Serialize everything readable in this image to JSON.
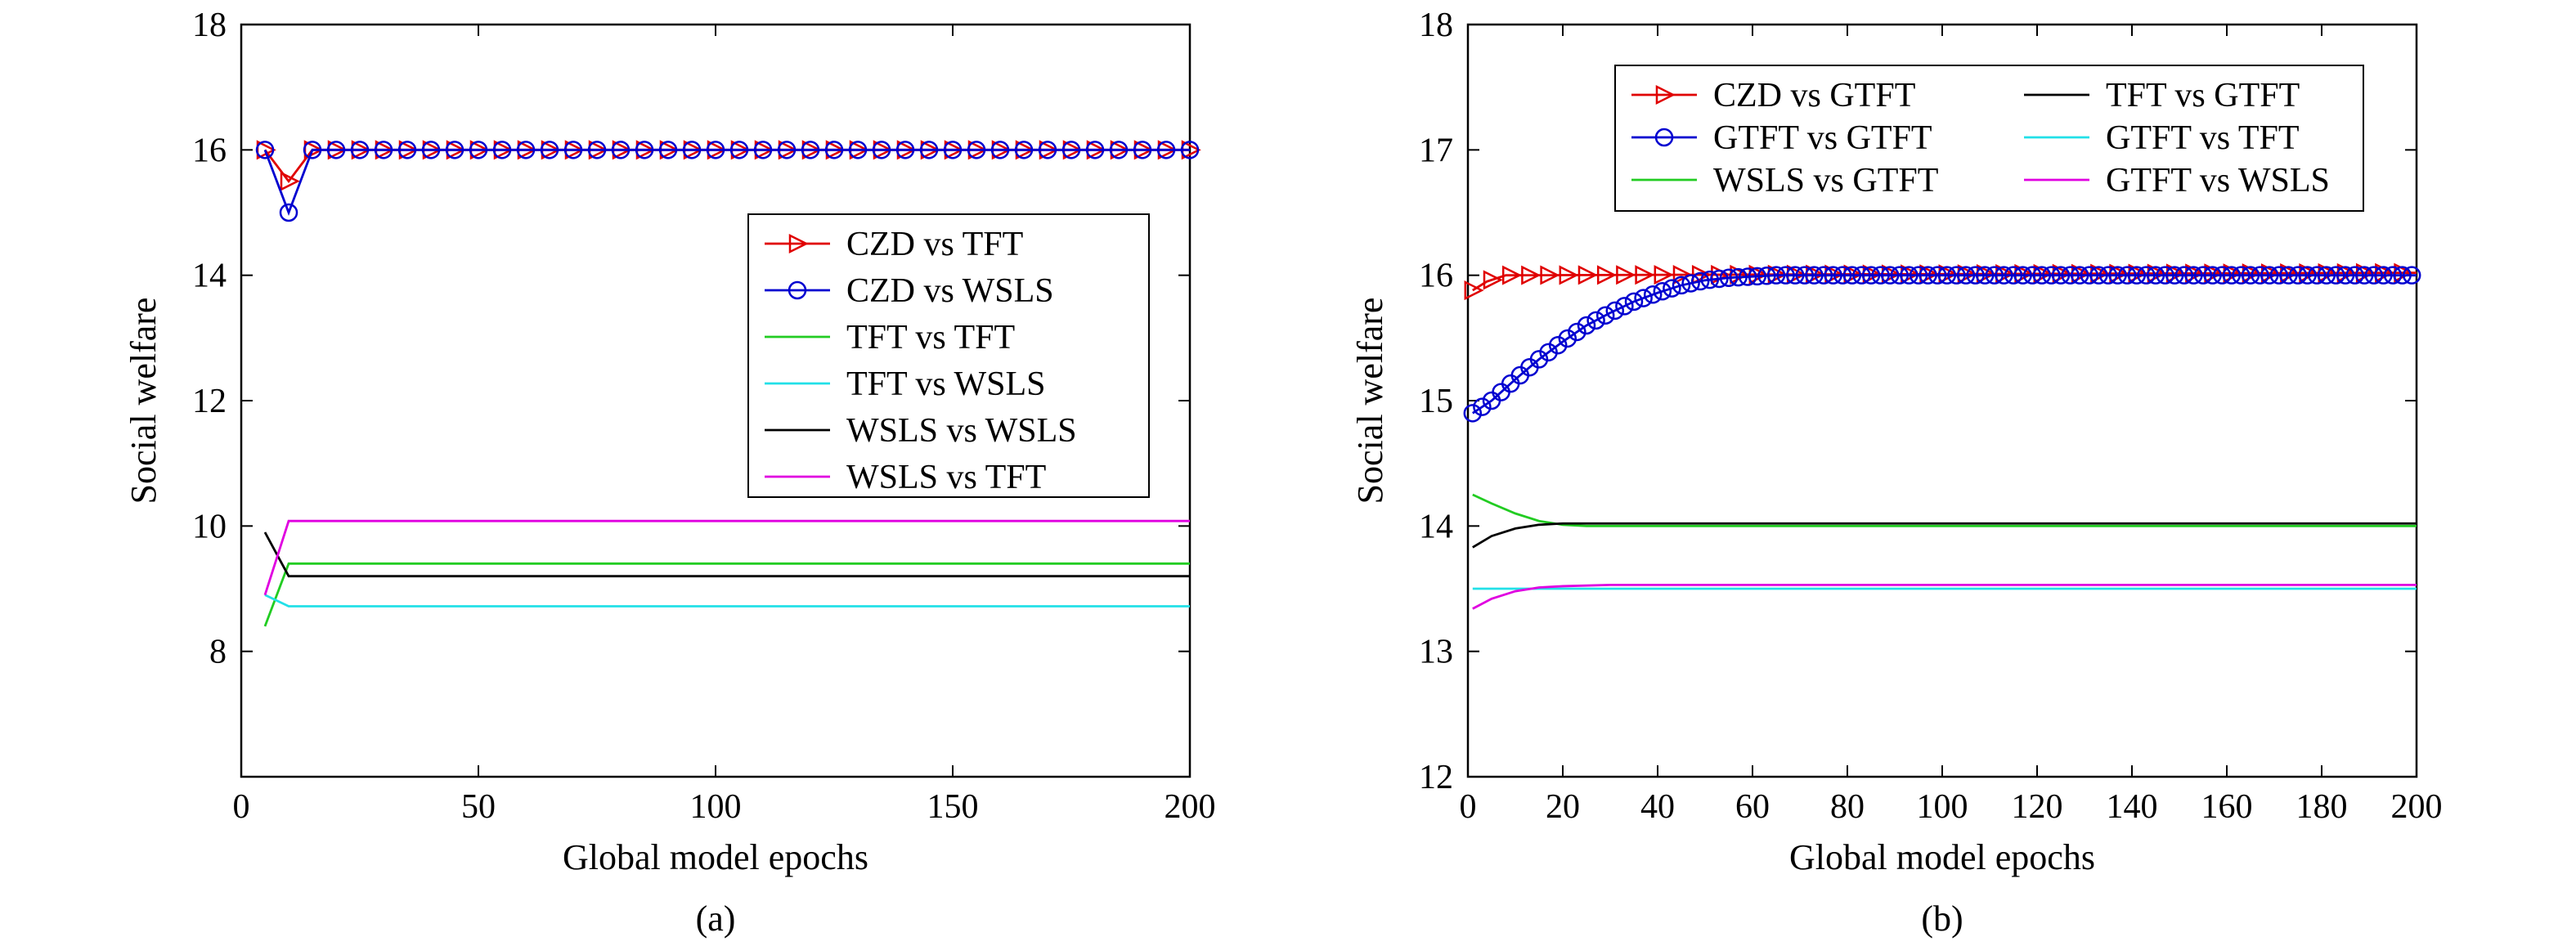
{
  "chart_data": [
    {
      "type": "line",
      "panel_label": "(a)",
      "xlabel": "Global model epochs",
      "ylabel": "Social welfare",
      "xlim": [
        0,
        200
      ],
      "ylim": [
        6,
        18
      ],
      "xticks": [
        0,
        50,
        100,
        150,
        200
      ],
      "yticks": [
        8,
        10,
        12,
        14,
        16,
        18
      ],
      "legend_position": "center-right",
      "grid": false,
      "series": [
        {
          "name": "CZD vs TFT",
          "color": "#e00000",
          "marker": "triangle-right",
          "points": [
            [
              5,
              16
            ],
            [
              10,
              15.5
            ],
            [
              15,
              16
            ],
            [
              20,
              16
            ],
            [
              200,
              16
            ]
          ],
          "marker_start": 5,
          "marker_step": 5
        },
        {
          "name": "CZD vs WSLS",
          "color": "#0000d0",
          "marker": "circle",
          "points": [
            [
              5,
              16
            ],
            [
              10,
              15
            ],
            [
              15,
              16
            ],
            [
              20,
              16
            ],
            [
              200,
              16
            ]
          ],
          "marker_start": 5,
          "marker_step": 5
        },
        {
          "name": "TFT vs TFT",
          "color": "#22cc22",
          "marker": "none",
          "points": [
            [
              5,
              8.4
            ],
            [
              10,
              9.4
            ],
            [
              200,
              9.4
            ]
          ]
        },
        {
          "name": "TFT vs WSLS",
          "color": "#22e0e8",
          "marker": "none",
          "points": [
            [
              5,
              8.9
            ],
            [
              10,
              8.72
            ],
            [
              200,
              8.72
            ]
          ]
        },
        {
          "name": "WSLS vs WSLS",
          "color": "#000000",
          "marker": "none",
          "points": [
            [
              5,
              9.9
            ],
            [
              10,
              9.2
            ],
            [
              200,
              9.2
            ]
          ]
        },
        {
          "name": "WSLS vs TFT",
          "color": "#e000e0",
          "marker": "none",
          "points": [
            [
              5,
              8.9
            ],
            [
              10,
              10.08
            ],
            [
              200,
              10.08
            ]
          ]
        }
      ]
    },
    {
      "type": "line",
      "panel_label": "(b)",
      "xlabel": "Global model epochs",
      "ylabel": "Social welfare",
      "xlim": [
        0,
        200
      ],
      "ylim": [
        12,
        18
      ],
      "xticks": [
        0,
        20,
        40,
        60,
        80,
        100,
        120,
        140,
        160,
        180,
        200
      ],
      "yticks": [
        12,
        13,
        14,
        15,
        16,
        17,
        18
      ],
      "legend_position": "top",
      "grid": false,
      "series": [
        {
          "name": "CZD vs GTFT",
          "color": "#e00000",
          "marker": "triangle-right",
          "points": [
            [
              1,
              15.88
            ],
            [
              4,
              15.95
            ],
            [
              8,
              16
            ],
            [
              200,
              16.02
            ]
          ],
          "marker_start": 1,
          "marker_step": 4
        },
        {
          "name": "GTFT vs GTFT",
          "color": "#0000d0",
          "marker": "circle",
          "points": [
            [
              1,
              14.9
            ],
            [
              5,
              15.0
            ],
            [
              10,
              15.17
            ],
            [
              15,
              15.33
            ],
            [
              20,
              15.47
            ],
            [
              25,
              15.6
            ],
            [
              30,
              15.7
            ],
            [
              35,
              15.79
            ],
            [
              40,
              15.86
            ],
            [
              45,
              15.92
            ],
            [
              50,
              15.96
            ],
            [
              55,
              15.98
            ],
            [
              60,
              15.99
            ],
            [
              65,
              16.0
            ],
            [
              200,
              16.0
            ]
          ],
          "marker_start": 1,
          "marker_step": 2
        },
        {
          "name": "WSLS vs GTFT",
          "color": "#22cc22",
          "marker": "none",
          "points": [
            [
              1,
              14.25
            ],
            [
              5,
              14.18
            ],
            [
              10,
              14.1
            ],
            [
              15,
              14.04
            ],
            [
              20,
              14.01
            ],
            [
              25,
              14.0
            ],
            [
              200,
              14.0
            ]
          ]
        },
        {
          "name": "TFT vs GTFT",
          "color": "#000000",
          "marker": "none",
          "points": [
            [
              1,
              13.83
            ],
            [
              5,
              13.92
            ],
            [
              10,
              13.98
            ],
            [
              15,
              14.01
            ],
            [
              20,
              14.02
            ],
            [
              200,
              14.02
            ]
          ]
        },
        {
          "name": "GTFT vs TFT",
          "color": "#22e0e8",
          "marker": "none",
          "points": [
            [
              1,
              13.5
            ],
            [
              200,
              13.5
            ]
          ]
        },
        {
          "name": "GTFT vs WSLS",
          "color": "#e000e0",
          "marker": "none",
          "points": [
            [
              1,
              13.34
            ],
            [
              5,
              13.42
            ],
            [
              10,
              13.48
            ],
            [
              15,
              13.51
            ],
            [
              20,
              13.52
            ],
            [
              30,
              13.53
            ],
            [
              200,
              13.53
            ]
          ]
        }
      ]
    }
  ]
}
